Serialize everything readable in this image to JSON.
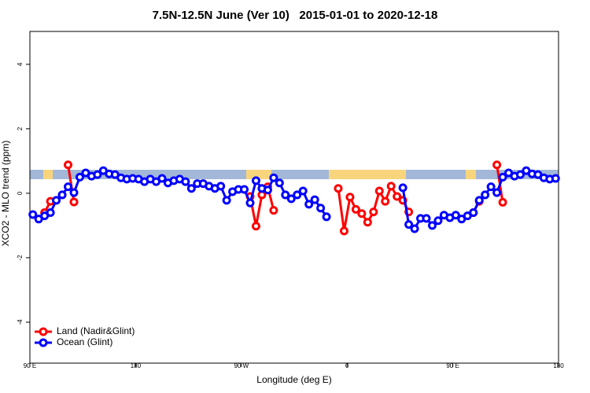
{
  "chart_data": {
    "type": "line",
    "title": "7.5N-12.5N June (Ver 10)   2015-01-01 to 2020-12-18",
    "xlabel": "Longitude (deg E)",
    "ylabel": "XCO2 - MLO trend (ppm)",
    "xlim": [
      90,
      540
    ],
    "xticks": [
      {
        "value": 90,
        "label": "90 E"
      },
      180,
      {
        "value": 270,
        "label": "90 W"
      },
      {
        "value": 360,
        "label": "0"
      },
      {
        "value": 450,
        "label": "90 E"
      },
      {
        "value": 540,
        "label": "180"
      }
    ],
    "ylim": [
      -5.27,
      5.02
    ],
    "yticks": [
      -4,
      -2,
      0,
      2,
      4
    ],
    "legend": "bottom-left",
    "x": [
      92.5,
      97.5,
      102.5,
      107.5,
      112.5,
      117.5,
      122.5,
      127.5,
      132.5,
      137.5,
      142.5,
      147.5,
      152.5,
      157.5,
      162.5,
      167.5,
      172.5,
      177.5,
      182.5,
      187.5,
      192.5,
      197.5,
      202.5,
      207.5,
      212.5,
      217.5,
      222.5,
      227.5,
      232.5,
      237.5,
      242.5,
      247.5,
      252.5,
      257.5,
      262.5,
      267.5,
      272.5,
      277.5,
      282.5,
      287.5,
      292.5,
      297.5,
      302.5,
      307.5,
      312.5,
      317.5,
      322.5,
      327.5,
      332.5,
      337.5,
      342.5,
      347.5,
      352.5,
      357.5,
      362.5,
      367.5,
      372.5,
      377.5,
      382.5,
      387.5,
      392.5,
      397.5,
      402.5,
      407.5,
      412.5,
      417.5,
      422.5,
      427.5,
      432.5,
      437.5,
      442.5,
      447.5,
      452.5,
      457.5,
      462.5,
      467.5,
      472.5,
      477.5,
      482.5,
      487.5,
      492.5,
      497.5,
      502.5,
      507.5,
      512.5,
      517.5,
      522.5,
      527.5,
      532.5,
      537.5
    ],
    "series": [
      {
        "name": "Land (Nadir&Glint)",
        "color": "#ff0000",
        "values": [
          null,
          null,
          -0.6,
          -0.25,
          null,
          null,
          0.88,
          -0.27,
          null,
          null,
          null,
          null,
          null,
          null,
          null,
          null,
          null,
          null,
          null,
          null,
          null,
          null,
          null,
          null,
          null,
          null,
          null,
          null,
          null,
          null,
          null,
          null,
          null,
          null,
          null,
          null,
          null,
          -0.1,
          -1.02,
          -0.05,
          0.2,
          -0.53,
          null,
          null,
          null,
          null,
          null,
          null,
          null,
          null,
          null,
          null,
          0.15,
          -1.17,
          -0.12,
          -0.5,
          -0.63,
          -0.9,
          -0.58,
          0.07,
          -0.25,
          0.22,
          -0.1,
          -0.22,
          -0.58,
          null,
          null,
          null,
          null,
          null,
          null,
          null,
          null,
          null,
          null,
          -0.6,
          -0.25,
          null,
          null,
          0.88,
          -0.28,
          null,
          null,
          null,
          null,
          null,
          null,
          null,
          null,
          null
        ]
      },
      {
        "name": "Ocean (Glint)",
        "color": "#0000ff",
        "values": [
          -0.66,
          -0.8,
          -0.7,
          -0.6,
          -0.22,
          -0.05,
          0.2,
          0.02,
          0.5,
          0.63,
          0.53,
          0.58,
          0.7,
          0.6,
          0.58,
          0.48,
          0.44,
          0.46,
          0.44,
          0.36,
          0.44,
          0.36,
          0.46,
          0.32,
          0.39,
          0.44,
          0.36,
          0.15,
          0.3,
          0.3,
          0.22,
          0.15,
          0.22,
          -0.22,
          0.05,
          0.12,
          0.12,
          -0.3,
          0.39,
          0.15,
          0.1,
          0.48,
          0.32,
          -0.05,
          -0.17,
          -0.05,
          0.07,
          -0.34,
          -0.2,
          -0.46,
          -0.73,
          null,
          null,
          null,
          null,
          null,
          null,
          null,
          null,
          null,
          null,
          null,
          null,
          0.17,
          -0.97,
          -1.1,
          -0.78,
          -0.78,
          -1.0,
          -0.85,
          -0.68,
          -0.76,
          -0.68,
          -0.8,
          -0.7,
          -0.6,
          -0.22,
          -0.05,
          0.2,
          0.02,
          0.5,
          0.63,
          0.53,
          0.58,
          0.7,
          0.6,
          0.58,
          0.48,
          0.44,
          0.46
        ]
      }
    ]
  }
}
